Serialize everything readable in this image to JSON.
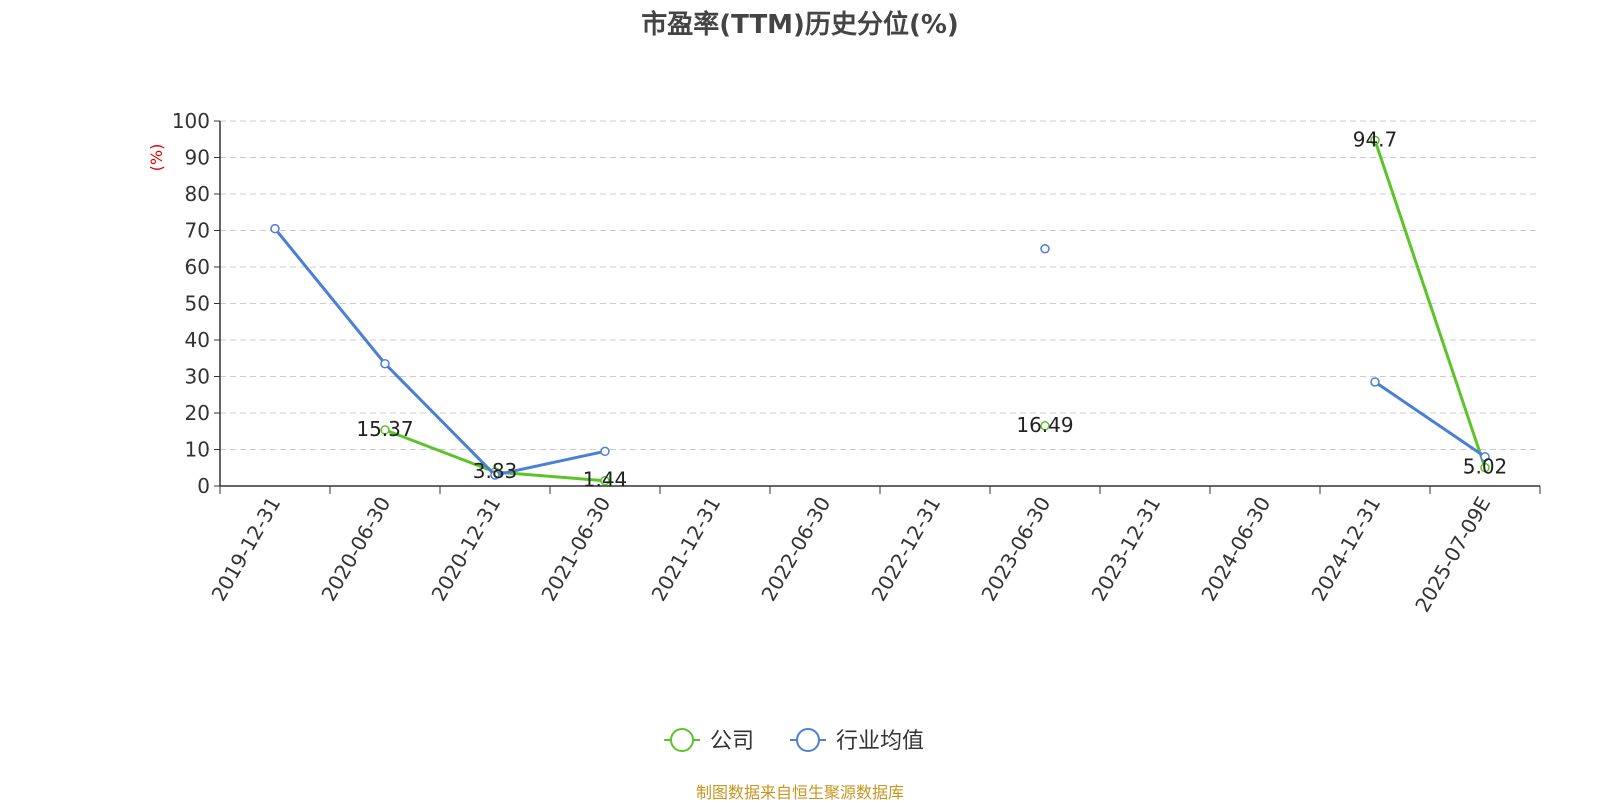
{
  "chart_data": {
    "type": "line",
    "title": "市盈率(TTM)历史分位(%)",
    "ylabel": "(%)",
    "ylim": [
      0,
      100
    ],
    "yticks": [
      0,
      10,
      20,
      30,
      40,
      50,
      60,
      70,
      80,
      90,
      100
    ],
    "grid": true,
    "legend_position": "bottom-center",
    "x_axis_ticks": [
      "2019-12-31",
      "2020-06-30",
      "2020-12-31",
      "2021-06-30",
      "2021-12-31",
      "2022-06-30",
      "2022-12-31",
      "2023-06-30",
      "2023-12-31",
      "2024-06-30",
      "2024-12-31",
      "2025-07-09E"
    ],
    "series": [
      {
        "name": "公司",
        "color": "#5cc328",
        "points": [
          {
            "x": "2020-06-30",
            "y": 15.37,
            "label": "15.37"
          },
          {
            "x": "2020-12-31",
            "y": 3.83,
            "label": "3.83"
          },
          {
            "x": "2021-06-30",
            "y": 1.44,
            "label": "1.44"
          },
          {
            "x": "2023-06-30",
            "y": 16.49,
            "label": "16.49"
          },
          {
            "x": "2024-12-31",
            "y": 94.7,
            "label": "94.7"
          },
          {
            "x": "2025-07-09E",
            "y": 5.02,
            "label": "5.02"
          }
        ],
        "segments": [
          [
            0,
            1,
            2
          ],
          [
            3
          ],
          [
            4,
            5
          ]
        ]
      },
      {
        "name": "行业均值",
        "color": "#4a7fd6",
        "points": [
          {
            "x": "2019-12-31",
            "y": 70.5
          },
          {
            "x": "2020-06-30",
            "y": 33.5
          },
          {
            "x": "2020-12-31",
            "y": 3.0
          },
          {
            "x": "2021-06-30",
            "y": 9.5
          },
          {
            "x": "2023-06-30",
            "y": 65.0
          },
          {
            "x": "2024-12-31",
            "y": 28.5
          },
          {
            "x": "2025-07-09E",
            "y": 8.0
          }
        ],
        "segments": [
          [
            0,
            1,
            2,
            3
          ],
          [
            4
          ],
          [
            5,
            6
          ]
        ]
      }
    ]
  },
  "source_note": "制图数据来自恒生聚源数据库"
}
